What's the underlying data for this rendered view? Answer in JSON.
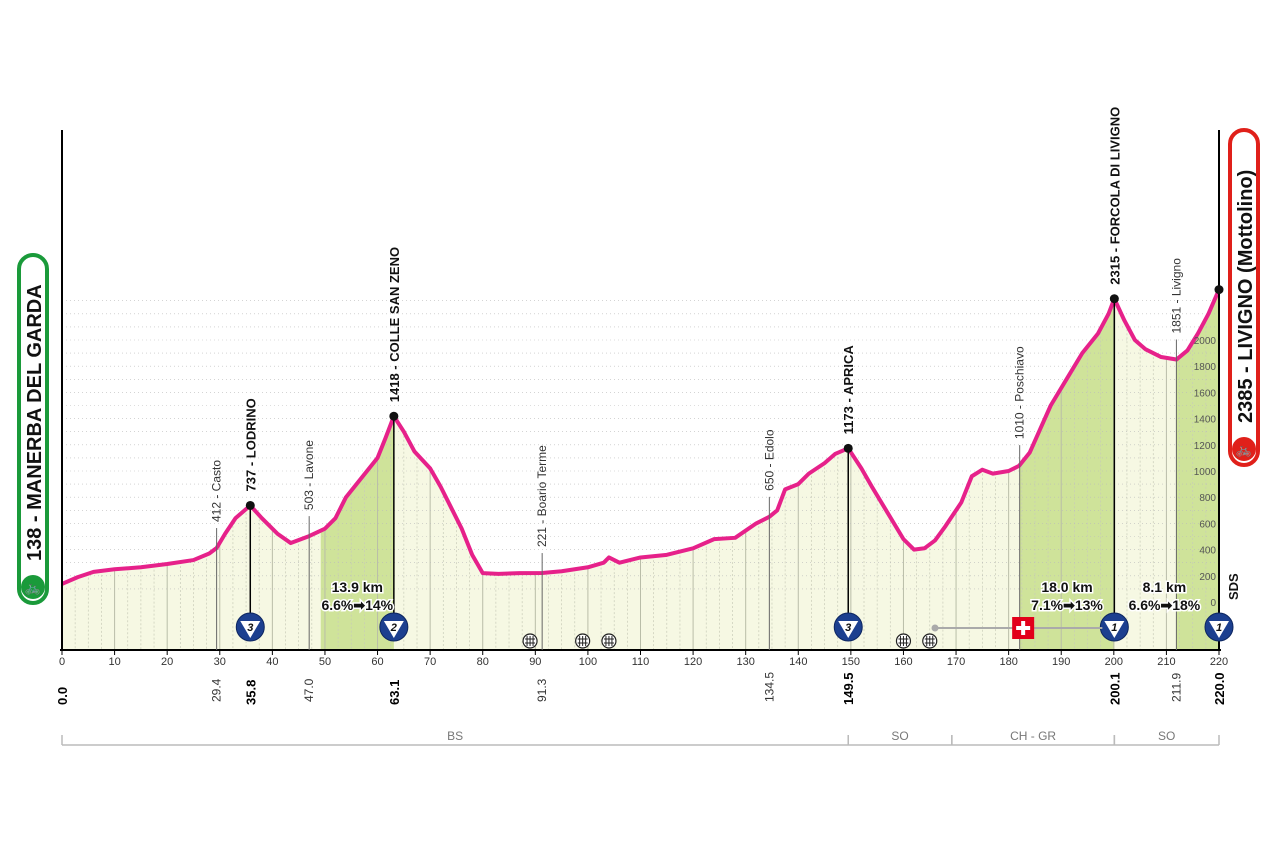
{
  "chart_data": {
    "type": "area",
    "title": "",
    "xlabel": "",
    "ylabel": "",
    "xlim": [
      0,
      220
    ],
    "ylim": [
      0,
      2400
    ],
    "x_ticks": [
      0,
      10,
      20,
      30,
      40,
      50,
      60,
      70,
      80,
      90,
      100,
      110,
      120,
      130,
      140,
      150,
      160,
      170,
      180,
      190,
      200,
      210,
      220
    ],
    "y_ticks": [
      0,
      200,
      400,
      600,
      800,
      1000,
      1200,
      1400,
      1600,
      1800,
      2000
    ],
    "profile": [
      [
        0,
        138
      ],
      [
        3,
        190
      ],
      [
        6,
        230
      ],
      [
        10,
        250
      ],
      [
        15,
        265
      ],
      [
        20,
        290
      ],
      [
        25,
        320
      ],
      [
        28,
        370
      ],
      [
        29.4,
        412
      ],
      [
        31,
        520
      ],
      [
        33,
        640
      ],
      [
        35.8,
        737
      ],
      [
        38,
        640
      ],
      [
        41,
        520
      ],
      [
        43.5,
        450
      ],
      [
        47,
        503
      ],
      [
        50,
        560
      ],
      [
        52,
        640
      ],
      [
        54,
        800
      ],
      [
        56,
        900
      ],
      [
        58,
        1000
      ],
      [
        60,
        1100
      ],
      [
        61.5,
        1250
      ],
      [
        63.1,
        1418
      ],
      [
        65,
        1300
      ],
      [
        67,
        1150
      ],
      [
        70,
        1020
      ],
      [
        72,
        880
      ],
      [
        74,
        720
      ],
      [
        76,
        560
      ],
      [
        78,
        360
      ],
      [
        80,
        220
      ],
      [
        83,
        215
      ],
      [
        87,
        220
      ],
      [
        91.3,
        221
      ],
      [
        95,
        235
      ],
      [
        100,
        265
      ],
      [
        103,
        300
      ],
      [
        104,
        340
      ],
      [
        106,
        300
      ],
      [
        110,
        340
      ],
      [
        115,
        360
      ],
      [
        120,
        410
      ],
      [
        124,
        480
      ],
      [
        128,
        490
      ],
      [
        132,
        600
      ],
      [
        134.5,
        650
      ],
      [
        136,
        700
      ],
      [
        137.5,
        860
      ],
      [
        140,
        900
      ],
      [
        142,
        980
      ],
      [
        145,
        1060
      ],
      [
        147,
        1130
      ],
      [
        149.5,
        1173
      ],
      [
        152,
        1020
      ],
      [
        154,
        880
      ],
      [
        157,
        680
      ],
      [
        160,
        480
      ],
      [
        162,
        400
      ],
      [
        164,
        410
      ],
      [
        166,
        470
      ],
      [
        168,
        580
      ],
      [
        171,
        760
      ],
      [
        173,
        960
      ],
      [
        175,
        1010
      ],
      [
        177,
        980
      ],
      [
        180,
        1000
      ],
      [
        182,
        1040
      ],
      [
        184,
        1140
      ],
      [
        186,
        1320
      ],
      [
        188,
        1500
      ],
      [
        191,
        1700
      ],
      [
        194,
        1900
      ],
      [
        197,
        2050
      ],
      [
        199,
        2200
      ],
      [
        200.1,
        2315
      ],
      [
        202,
        2150
      ],
      [
        204,
        2000
      ],
      [
        206,
        1930
      ],
      [
        209,
        1870
      ],
      [
        211.9,
        1851
      ],
      [
        214,
        1920
      ],
      [
        216,
        2050
      ],
      [
        218,
        2200
      ],
      [
        220,
        2385
      ]
    ],
    "climb_segments": [
      {
        "from": 49.2,
        "to": 63.1,
        "length": "13.9 km",
        "gradient": "6.6%➡14%"
      },
      {
        "from": 182.1,
        "to": 200.1,
        "length": "18.0 km",
        "gradient": "7.1%➡13%"
      },
      {
        "from": 211.9,
        "to": 220,
        "length": "8.1 km",
        "gradient": "6.6%➡18%"
      }
    ],
    "summits": [
      {
        "km": 35.8,
        "label": "737 - LODRINO",
        "category": "3"
      },
      {
        "km": 63.1,
        "label": "1418 - COLLE SAN ZENO",
        "category": "2"
      },
      {
        "km": 149.5,
        "label": "1173 - APRICA",
        "category": "3"
      },
      {
        "km": 200.1,
        "label": "2315 - FORCOLA DI LIVIGNO",
        "category": "1"
      },
      {
        "km": 220,
        "label": "",
        "category": "1"
      }
    ],
    "towns": [
      {
        "km": 29.4,
        "label": "412 - Casto",
        "dist": "29.4"
      },
      {
        "km": 47.0,
        "label": "503 - Lavone",
        "dist": "47.0"
      },
      {
        "km": 91.3,
        "label": "221 - Boario Terme",
        "dist": "91.3"
      },
      {
        "km": 134.5,
        "label": "650 - Edolo",
        "dist": "134.5"
      },
      {
        "km": 182.1,
        "label": "1010 - Poschiavo",
        "dist": ""
      },
      {
        "km": 211.9,
        "label": "1851 - Livigno",
        "dist": "211.9"
      }
    ],
    "bold_distances": [
      {
        "km": 0,
        "label": "0.0"
      },
      {
        "km": 35.8,
        "label": "35.8"
      },
      {
        "km": 63.1,
        "label": "63.1"
      },
      {
        "km": 149.5,
        "label": "149.5"
      },
      {
        "km": 200.1,
        "label": "200.1"
      },
      {
        "km": 220,
        "label": "220.0"
      }
    ],
    "crossing_icons_km": [
      89,
      99,
      104,
      160,
      165
    ],
    "border": {
      "from": 166,
      "to": 200.1,
      "flag_km": 182
    },
    "regions": [
      {
        "from": 0,
        "to": 149.5,
        "label": "BS"
      },
      {
        "from": 149.5,
        "to": 169.2,
        "label": "SO"
      },
      {
        "from": 169.2,
        "to": 200.1,
        "label": "CH - GR"
      },
      {
        "from": 200.1,
        "to": 220,
        "label": "SO"
      }
    ],
    "start": {
      "label": "138 - MANERBA DEL GARDA",
      "color": "#1a9a3a"
    },
    "finish": {
      "label": "2385 - LIVIGNO (Mottolino)",
      "color": "#e0201a"
    },
    "sds": "SDS",
    "colors": {
      "profile_line": "#e6218a",
      "fill": "#f6f8e3",
      "climb_fill": "#cfe39a",
      "kom": "#1c3f8f"
    }
  }
}
